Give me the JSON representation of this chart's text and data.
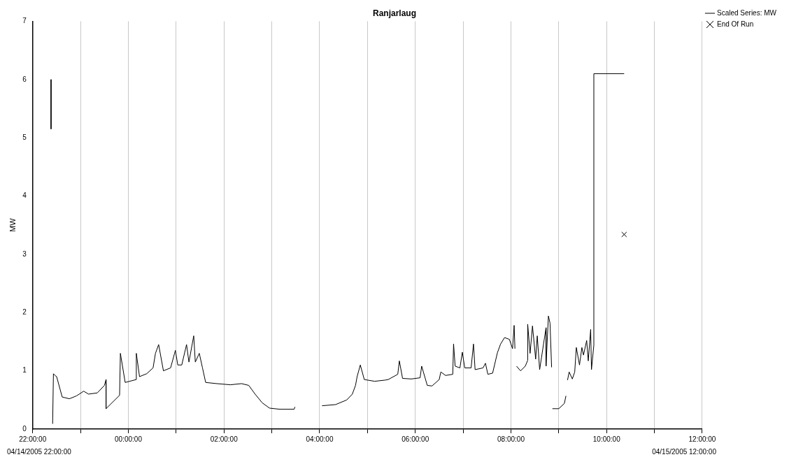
{
  "chart_data": {
    "type": "line",
    "title": "Ranjarlaug",
    "ylabel": "MW",
    "xlim": [
      "2005-04-14T22:00",
      "2005-04-15T12:00"
    ],
    "xticks": [
      {
        "value": "2005-04-14T22:00",
        "label": "22:00:00"
      },
      {
        "value": "2005-04-14T23:00",
        "label": null
      },
      {
        "value": "2005-04-15T00:00",
        "label": "00:00:00"
      },
      {
        "value": "2005-04-15T01:00",
        "label": null
      },
      {
        "value": "2005-04-15T02:00",
        "label": "02:00:00"
      },
      {
        "value": "2005-04-15T03:00",
        "label": null
      },
      {
        "value": "2005-04-15T04:00",
        "label": "04:00:00"
      },
      {
        "value": "2005-04-15T05:00",
        "label": null
      },
      {
        "value": "2005-04-15T06:00",
        "label": "06:00:00"
      },
      {
        "value": "2005-04-15T07:00",
        "label": null
      },
      {
        "value": "2005-04-15T08:00",
        "label": "08:00:00"
      },
      {
        "value": "2005-04-15T09:00",
        "label": null
      },
      {
        "value": "2005-04-15T10:00",
        "label": "10:00:00"
      },
      {
        "value": "2005-04-15T11:00",
        "label": null
      },
      {
        "value": "2005-04-15T12:00",
        "label": "12:00:00"
      }
    ],
    "ylim": [
      0,
      7
    ],
    "yticks": [
      0,
      1,
      2,
      3,
      4,
      5,
      6,
      7
    ],
    "grid": "x",
    "legend": "top right",
    "line_style": "solid",
    "annotations": [
      "04/14/2005 22:00:00",
      "04/15/2005 12:00:00"
    ],
    "series": [
      {
        "name": "Scaled Series: MW",
        "color": "#000000",
        "marker": "none",
        "x": [
          "2005-04-14T22:23",
          "2005-04-14T22:23",
          "2005-04-14T22:24",
          "2005-04-14T22:25",
          "2005-04-14T22:26",
          "2005-04-14T22:28",
          "2005-04-14T22:30",
          "2005-04-14T22:37",
          "2005-04-14T22:46",
          "2005-04-14T22:55",
          "2005-04-14T23:04",
          "2005-04-14T23:10",
          "2005-04-14T23:21",
          "2005-04-14T23:30",
          "2005-04-14T23:32",
          "2005-04-14T23:32",
          "2005-04-14T23:49",
          "2005-04-14T23:50",
          "2005-04-14T23:56",
          "2005-04-15T00:10",
          "2005-04-15T00:10",
          "2005-04-15T00:14",
          "2005-04-15T00:23",
          "2005-04-15T00:31",
          "2005-04-15T00:34",
          "2005-04-15T00:38",
          "2005-04-15T00:44",
          "2005-04-15T00:53",
          "2005-04-15T00:59",
          "2005-04-15T01:02",
          "2005-04-15T01:07",
          "2005-04-15T01:13",
          "2005-04-15T01:16",
          "2005-04-15T01:22",
          "2005-04-15T01:24",
          "2005-04-15T01:29",
          "2005-04-15T01:33",
          "2005-04-15T01:37",
          "2005-04-15T01:51",
          "2005-04-15T02:08",
          "2005-04-15T02:22",
          "2005-04-15T02:31",
          "2005-04-15T02:39",
          "2005-04-15T02:48",
          "2005-04-15T02:57",
          "2005-04-15T03:10",
          "2005-04-15T03:28",
          "2005-04-15T03:29",
          "2005-04-15T03:36",
          "2005-04-15T04:03",
          "2005-04-15T04:20",
          "2005-04-15T04:34",
          "2005-04-15T04:41",
          "2005-04-15T04:45",
          "2005-04-15T04:47",
          "2005-04-15T04:51",
          "2005-04-15T04:56",
          "2005-04-15T05:09",
          "2005-04-15T05:22",
          "2005-04-15T05:26",
          "2005-04-15T05:38",
          "2005-04-15T05:40",
          "2005-04-15T05:44",
          "2005-04-15T05:55",
          "2005-04-15T06:06",
          "2005-04-15T06:08",
          "2005-04-15T06:15",
          "2005-04-15T06:21",
          "2005-04-15T06:30",
          "2005-04-15T06:32",
          "2005-04-15T06:38",
          "2005-04-15T06:47",
          "2005-04-15T06:48",
          "2005-04-15T06:50",
          "2005-04-15T06:56",
          "2005-04-15T06:59",
          "2005-04-15T07:02",
          "2005-04-15T07:10",
          "2005-04-15T07:13",
          "2005-04-15T07:15",
          "2005-04-15T07:25",
          "2005-04-15T07:28",
          "2005-04-15T07:31",
          "2005-04-15T07:37",
          "2005-04-15T07:43",
          "2005-04-15T07:47",
          "2005-04-15T07:52",
          "2005-04-15T07:58",
          "2005-04-15T08:02",
          "2005-04-15T08:04",
          "2005-04-15T08:05",
          "2005-04-15T08:06",
          "2005-04-15T08:07",
          "2005-04-15T08:12",
          "2005-04-15T08:18",
          "2005-04-15T08:21",
          "2005-04-15T08:21",
          "2005-04-15T08:24",
          "2005-04-15T08:27",
          "2005-04-15T08:31",
          "2005-04-15T08:33",
          "2005-04-15T08:36",
          "2005-04-15T08:44",
          "2005-04-15T08:44",
          "2005-04-15T08:47",
          "2005-04-15T08:49",
          "2005-04-15T08:51",
          null,
          "2005-04-15T08:52",
          "2005-04-15T09:00",
          "2005-04-15T09:07",
          "2005-04-15T09:09",
          "2005-04-15T09:10",
          "2005-04-15T09:11",
          "2005-04-15T09:13",
          "2005-04-15T09:17",
          "2005-04-15T09:20",
          "2005-04-15T09:22",
          "2005-04-15T09:26",
          "2005-04-15T09:29",
          "2005-04-15T09:31",
          "2005-04-15T09:35",
          "2005-04-15T09:37",
          "2005-04-15T09:40",
          "2005-04-15T09:41",
          "2005-04-15T09:44",
          "2005-04-15T09:44",
          "2005-04-15T10:22"
        ],
        "values": [
          6.0,
          5.15,
          null,
          0.09,
          0.95,
          0.92,
          0.9,
          0.55,
          0.52,
          0.57,
          0.65,
          0.6,
          0.62,
          0.75,
          0.85,
          0.35,
          0.58,
          1.3,
          0.8,
          0.85,
          1.3,
          0.9,
          0.95,
          1.05,
          1.3,
          1.45,
          1.0,
          1.05,
          1.35,
          1.1,
          1.1,
          1.45,
          1.15,
          1.6,
          1.15,
          1.3,
          1.05,
          0.8,
          0.78,
          0.76,
          0.78,
          0.75,
          0.6,
          0.45,
          0.36,
          0.34,
          0.34,
          0.38,
          null,
          0.4,
          0.42,
          0.5,
          0.6,
          0.75,
          0.9,
          1.1,
          0.85,
          0.82,
          0.84,
          0.85,
          0.94,
          1.17,
          0.87,
          0.86,
          0.88,
          1.08,
          0.75,
          0.74,
          0.85,
          0.98,
          0.92,
          0.94,
          1.46,
          1.08,
          1.05,
          1.32,
          1.05,
          1.05,
          1.46,
          1.02,
          1.05,
          1.13,
          0.94,
          0.96,
          1.31,
          1.46,
          1.57,
          1.54,
          1.38,
          1.78,
          1.38,
          null,
          1.08,
          1.0,
          1.08,
          1.18,
          1.8,
          1.3,
          1.77,
          1.2,
          1.6,
          1.02,
          1.74,
          1.08,
          1.94,
          1.82,
          1.06,
          null,
          0.35,
          0.35,
          0.44,
          0.57,
          null,
          0.84,
          0.98,
          0.86,
          0.98,
          1.4,
          1.1,
          1.4,
          1.27,
          1.52,
          1.17,
          1.71,
          1.02,
          1.44,
          6.1,
          6.1
        ]
      },
      {
        "name": "End Of Run",
        "type": "scatter",
        "color": "#000000",
        "marker": "cross",
        "x": [
          "2005-04-15T10:22"
        ],
        "values": [
          3.34
        ]
      }
    ]
  }
}
